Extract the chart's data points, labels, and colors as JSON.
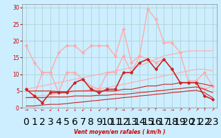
{
  "x": [
    0,
    1,
    2,
    3,
    4,
    5,
    6,
    7,
    8,
    9,
    10,
    11,
    12,
    13,
    14,
    15,
    16,
    17,
    18,
    19,
    20,
    21,
    22,
    23
  ],
  "series": [
    {
      "name": "rafales_light",
      "y": [
        18.5,
        13.5,
        10.5,
        10.5,
        16.5,
        18.5,
        18.5,
        16.5,
        18.5,
        18.5,
        18.5,
        15.5,
        23.5,
        13.5,
        15.5,
        29.5,
        26.5,
        19.5,
        19.5,
        16.5,
        8.0,
        8.0,
        10.5,
        6.5
      ],
      "color": "#ffaaaa",
      "lw": 1.0,
      "marker": "D",
      "ms": 2.5
    },
    {
      "name": "vent_moyen_light",
      "y": [
        5.5,
        3.5,
        10.5,
        10.5,
        4.5,
        10.5,
        10.5,
        8.5,
        6.5,
        5.5,
        10.5,
        10.5,
        15.5,
        10.5,
        15.5,
        14.5,
        13.5,
        14.5,
        11.5,
        7.5,
        7.5,
        7.5,
        5.5,
        6.5
      ],
      "color": "#ffaaaa",
      "lw": 1.0,
      "marker": "D",
      "ms": 2.5
    },
    {
      "name": "trend_upper_light",
      "y": [
        5.5,
        6.0,
        6.5,
        7.0,
        7.5,
        8.0,
        8.5,
        9.0,
        9.5,
        10.0,
        10.5,
        11.0,
        11.5,
        12.0,
        12.5,
        13.5,
        14.5,
        15.5,
        16.0,
        16.5,
        17.0,
        17.0,
        17.0,
        17.0
      ],
      "color": "#ffaaaa",
      "lw": 0.8,
      "marker": null,
      "ms": 0
    },
    {
      "name": "trend_upper2_light",
      "y": [
        3.0,
        3.3,
        3.6,
        3.9,
        4.2,
        4.5,
        4.8,
        5.1,
        5.4,
        5.7,
        6.0,
        6.5,
        7.0,
        7.5,
        8.0,
        8.5,
        9.0,
        9.5,
        10.0,
        10.5,
        11.0,
        11.5,
        11.5,
        11.0
      ],
      "color": "#ffaaaa",
      "lw": 0.8,
      "marker": null,
      "ms": 0
    },
    {
      "name": "vent_dark",
      "y": [
        5.5,
        3.5,
        1.5,
        4.5,
        4.5,
        4.5,
        7.5,
        8.5,
        5.5,
        4.5,
        5.5,
        5.5,
        10.5,
        10.5,
        13.5,
        14.5,
        11.5,
        14.5,
        11.5,
        7.5,
        7.5,
        7.5,
        3.5,
        2.5
      ],
      "color": "#cc2222",
      "lw": 1.2,
      "marker": "D",
      "ms": 2.5
    },
    {
      "name": "trend_lower_dark",
      "y": [
        5.0,
        5.0,
        5.0,
        5.0,
        4.8,
        4.8,
        5.0,
        5.0,
        5.0,
        5.0,
        5.0,
        5.0,
        5.5,
        5.5,
        6.0,
        6.5,
        6.5,
        7.0,
        7.0,
        7.5,
        7.5,
        7.5,
        7.0,
        6.5
      ],
      "color": "#cc2222",
      "lw": 0.8,
      "marker": null,
      "ms": 0
    },
    {
      "name": "trend_lower2_dark",
      "y": [
        3.0,
        3.0,
        3.0,
        3.2,
        3.2,
        3.2,
        3.5,
        3.5,
        3.5,
        3.7,
        3.7,
        4.0,
        4.0,
        4.2,
        4.5,
        4.7,
        5.0,
        5.2,
        5.5,
        5.7,
        6.0,
        6.2,
        5.5,
        4.5
      ],
      "color": "#cc2222",
      "lw": 0.8,
      "marker": null,
      "ms": 0
    },
    {
      "name": "trend_base_dark",
      "y": [
        0.5,
        0.5,
        0.8,
        1.0,
        1.0,
        1.2,
        1.5,
        1.7,
        2.0,
        2.2,
        2.5,
        2.7,
        3.0,
        3.2,
        3.5,
        3.7,
        4.0,
        4.2,
        4.5,
        4.7,
        5.0,
        5.2,
        4.5,
        3.0
      ],
      "color": "#cc2222",
      "lw": 0.8,
      "marker": null,
      "ms": 0
    }
  ],
  "arrow_symbols": [
    "→",
    "↘",
    "←",
    "↙",
    "↓",
    "↙",
    "↓",
    "↙",
    "↓",
    "↙",
    "↗",
    "↗",
    "→",
    "↗",
    "→",
    "↗",
    "↑",
    "→",
    "→",
    "↗",
    "↗",
    "↗",
    "↑",
    "↗"
  ],
  "xlabel": "Vent moyen/en rafales ( km/h )",
  "ylim": [
    0,
    31
  ],
  "yticks": [
    0,
    5,
    10,
    15,
    20,
    25,
    30
  ],
  "xlim": [
    -0.5,
    23.5
  ],
  "bg_color": "#cceeff",
  "grid_color": "#aacccc",
  "text_color": "#cc0000",
  "xlabel_color": "#cc0000",
  "tick_color": "#cc0000"
}
